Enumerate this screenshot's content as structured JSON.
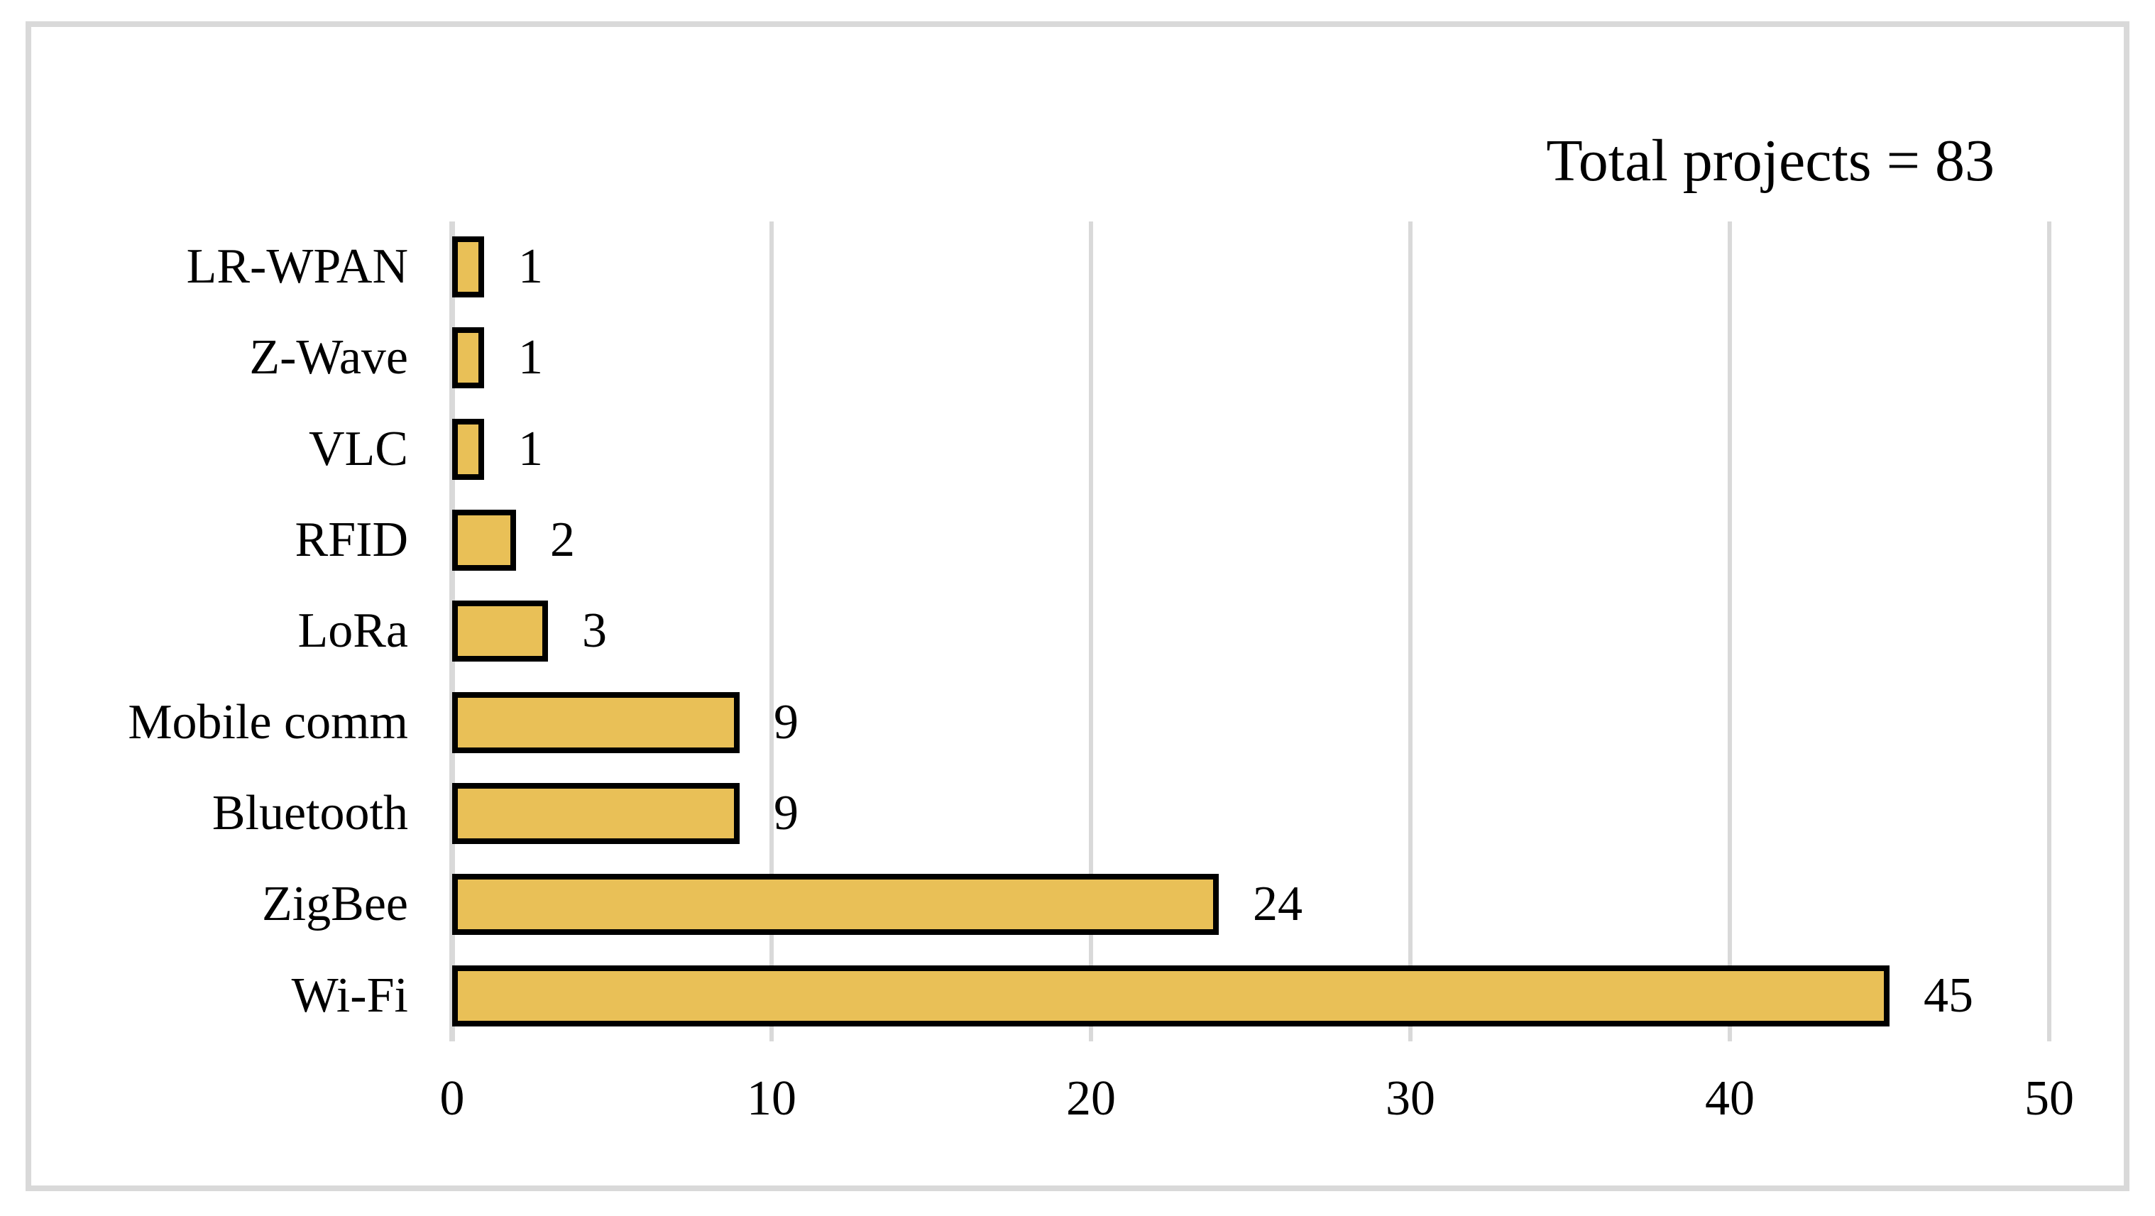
{
  "figure": {
    "title": "Total projects = 83"
  },
  "chart_data": {
    "type": "bar",
    "orientation": "horizontal",
    "title": "Total projects = 83",
    "categories": [
      "LR-WPAN",
      "Z-Wave",
      "VLC",
      "RFID",
      "LoRa",
      "Mobile comm",
      "Bluetooth",
      "ZigBee",
      "Wi-Fi"
    ],
    "values": [
      1,
      1,
      1,
      2,
      3,
      9,
      9,
      24,
      45
    ],
    "xlabel": "",
    "ylabel": "",
    "xlim": [
      0,
      50
    ],
    "x_ticks": [
      "0",
      "10",
      "20",
      "30",
      "40",
      "50"
    ],
    "grid": "vertical",
    "legend": "none",
    "bar_color": "#E9C057",
    "bar_border_color": "#000000",
    "gridline_color": "#D9D9D9",
    "frame_color": "#D9D9D9",
    "text_color": "#000000"
  }
}
